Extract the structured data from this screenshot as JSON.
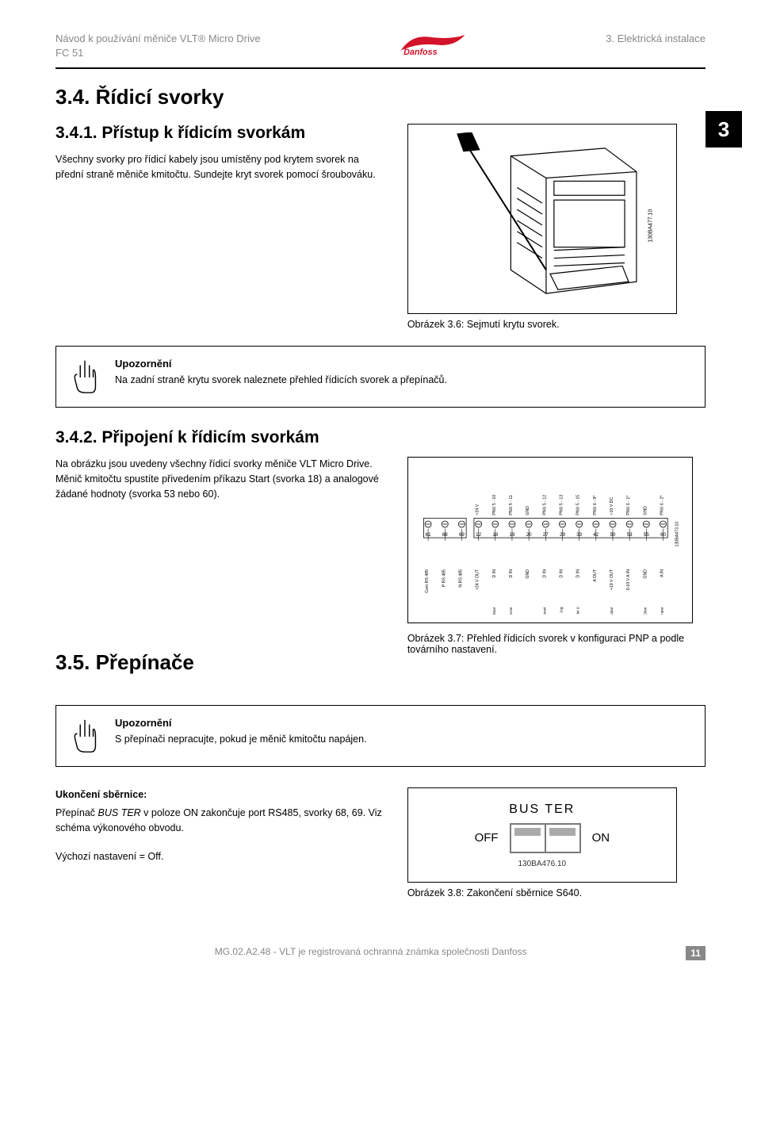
{
  "header": {
    "left_line1": "Návod k používání měniče VLT® Micro Drive",
    "left_line2": "FC 51",
    "right": "3. Elektrická instalace",
    "logo_text": "Danfoss"
  },
  "chapter_tab": "3",
  "s34": {
    "title": "3.4. Řídicí svorky",
    "s341": {
      "title": "3.4.1. Přístup k řídicím svorkám",
      "p1": "Všechny svorky pro řídicí kabely jsou umístěny pod krytem svorek na přední straně měniče kmitočtu. Sundejte kryt svorek pomocí šroubováku.",
      "fig_code": "130BA477.10",
      "fig_caption": "Obrázek 3.6: Sejmutí krytu svorek."
    },
    "notice1": {
      "title": "Upozornění",
      "body": "Na zadní straně krytu svorek naleznete přehled řídicích svorek a přepínačů."
    },
    "s342": {
      "title": "3.4.2. Připojení k řídicím svorkám",
      "p1": "Na obrázku jsou uvedeny všechny řídicí svorky měniče VLT Micro Drive. Měnič kmitočtu spustíte přivedením příkazu Start (svorka 18) a analogové žádané hodnoty (svorka 53 nebo 60).",
      "terminals_top_labels": [
        "+24 V",
        "PNU 5 - 10",
        "PNU 5 - 11",
        "GND",
        "PNU 5 - 12",
        "PNU 5 - 13",
        "PNU 5 - 15",
        "PNU 6 - 9*",
        "+10 V DC",
        "PNU 6 - 1*",
        "GND",
        "PNU 6 - 2*"
      ],
      "terminals_numbers": [
        "61",
        "68",
        "69",
        "12",
        "18",
        "19",
        "20",
        "27",
        "29",
        "33",
        "42",
        "50",
        "53",
        "55",
        "60"
      ],
      "terminals_bottom_labels": [
        "Com RS 485",
        "P RS 485",
        "N RS 485",
        "+24 V OUT",
        "D IN",
        "D IN",
        "GND",
        "D IN",
        "D IN",
        "D IN",
        "A OUT",
        "+10 V OUT",
        "0-10 V A IN",
        "GND",
        "A IN"
      ],
      "terminals_hints": [
        "Start",
        "Reverse",
        "Reset",
        "Jog",
        "Preset bit 0",
        "0/4 - 20 mA Output",
        "1K Ohm",
        "0/4 - 20 mA Input"
      ],
      "fig_code": "130BA473.10",
      "fig_caption": "Obrázek 3.7: Přehled řídicích svorek v konfiguraci PNP a podle továrního nastavení."
    }
  },
  "s35": {
    "title": "3.5. Přepínače",
    "notice2": {
      "title": "Upozornění",
      "body": "S přepínači nepracujte, pokud je měnič kmitočtu napájen."
    },
    "bus": {
      "heading": "Ukončení sběrnice:",
      "p1a": "Přepínač ",
      "p1b_italic": "BUS TER",
      "p1c": " v poloze ON zakončuje port RS485, svorky 68, 69. Viz schéma výkonového obvodu.",
      "default": "Výchozí nastavení = Off.",
      "switch_label": "BUS TER",
      "off": "OFF",
      "on": "ON",
      "fig_code": "130BA476.10",
      "fig_caption": "Obrázek 3.8: Zakončení sběrnice S640."
    }
  },
  "footer": {
    "center": "MG.02.A2.48 - VLT je registrovaná ochranná známka společnosti Danfoss",
    "page": "11"
  },
  "colors": {
    "muted": "#888888",
    "fg": "#000000"
  }
}
